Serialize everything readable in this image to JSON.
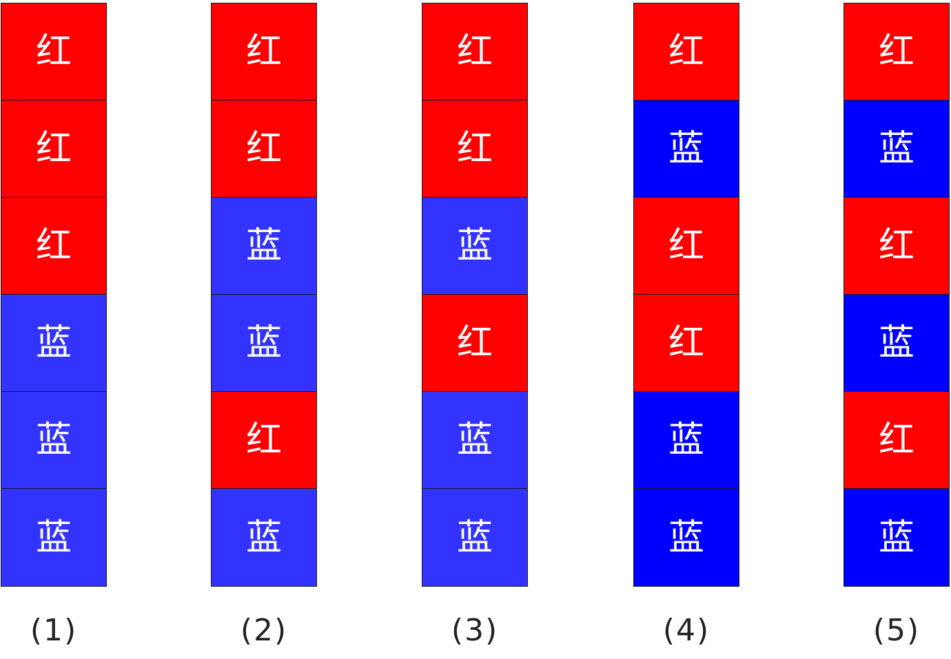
{
  "colors": {
    "red": "#ff0000",
    "blue_light": "#3333ff",
    "blue_dark": "#0000ff"
  },
  "columns": [
    {
      "label": "(1)",
      "cells": [
        {
          "text": "红",
          "color": "red"
        },
        {
          "text": "红",
          "color": "red"
        },
        {
          "text": "红",
          "color": "red"
        },
        {
          "text": "蓝",
          "color": "blue_light"
        },
        {
          "text": "蓝",
          "color": "blue_light"
        },
        {
          "text": "蓝",
          "color": "blue_light"
        }
      ]
    },
    {
      "label": "(2)",
      "cells": [
        {
          "text": "红",
          "color": "red"
        },
        {
          "text": "红",
          "color": "red"
        },
        {
          "text": "蓝",
          "color": "blue_light"
        },
        {
          "text": "蓝",
          "color": "blue_light"
        },
        {
          "text": "红",
          "color": "red"
        },
        {
          "text": "蓝",
          "color": "blue_light"
        }
      ]
    },
    {
      "label": "(3)",
      "cells": [
        {
          "text": "红",
          "color": "red"
        },
        {
          "text": "红",
          "color": "red"
        },
        {
          "text": "蓝",
          "color": "blue_light"
        },
        {
          "text": "红",
          "color": "red"
        },
        {
          "text": "蓝",
          "color": "blue_light"
        },
        {
          "text": "蓝",
          "color": "blue_light"
        }
      ]
    },
    {
      "label": "(4)",
      "cells": [
        {
          "text": "红",
          "color": "red"
        },
        {
          "text": "蓝",
          "color": "blue_dark"
        },
        {
          "text": "红",
          "color": "red"
        },
        {
          "text": "红",
          "color": "red"
        },
        {
          "text": "蓝",
          "color": "blue_dark"
        },
        {
          "text": "蓝",
          "color": "blue_dark"
        }
      ]
    },
    {
      "label": "(5)",
      "cells": [
        {
          "text": "红",
          "color": "red"
        },
        {
          "text": "蓝",
          "color": "blue_dark"
        },
        {
          "text": "红",
          "color": "red"
        },
        {
          "text": "蓝",
          "color": "blue_dark"
        },
        {
          "text": "红",
          "color": "red"
        },
        {
          "text": "蓝",
          "color": "blue_dark"
        }
      ]
    }
  ]
}
